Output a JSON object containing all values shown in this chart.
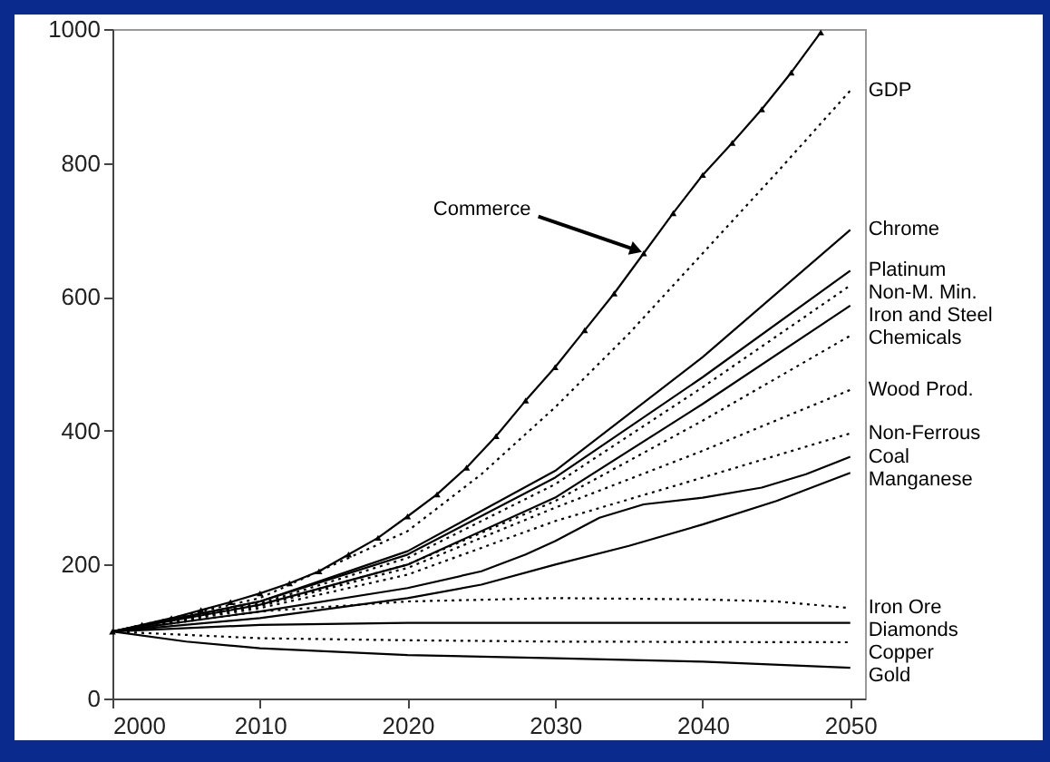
{
  "chart_data": {
    "type": "line",
    "xlim": [
      2000,
      2051
    ],
    "ylim": [
      0,
      1000
    ],
    "xticks": [
      2000,
      2010,
      2020,
      2030,
      2040,
      2050
    ],
    "yticks": [
      0,
      200,
      400,
      600,
      800,
      1000
    ],
    "grid": false,
    "series": [
      {
        "name": "Commerce",
        "color": "#000000",
        "marker": "triangle",
        "line_style": "solid",
        "x": [
          2000,
          2002,
          2004,
          2006,
          2008,
          2010,
          2012,
          2014,
          2016,
          2018,
          2020,
          2022,
          2024,
          2026,
          2028,
          2030,
          2032,
          2034,
          2036,
          2038,
          2040,
          2042,
          2044,
          2046,
          2048
        ],
        "values": [
          100,
          110,
          120,
          132,
          144,
          157,
          172,
          190,
          215,
          240,
          272,
          305,
          345,
          392,
          445,
          495,
          550,
          605,
          665,
          725,
          782,
          830,
          880,
          935,
          995
        ]
      },
      {
        "name": "GDP",
        "color": "#000000",
        "line_style": "dotted",
        "x": [
          2000,
          2010,
          2020,
          2025,
          2030,
          2035,
          2040,
          2045,
          2050
        ],
        "values": [
          100,
          150,
          250,
          335,
          435,
          545,
          665,
          785,
          908
        ]
      },
      {
        "name": "Chrome",
        "color": "#000000",
        "line_style": "solid",
        "x": [
          2000,
          2010,
          2020,
          2030,
          2040,
          2050
        ],
        "values": [
          100,
          145,
          220,
          340,
          510,
          700
        ]
      },
      {
        "name": "Platinum",
        "color": "#000000",
        "line_style": "solid",
        "x": [
          2000,
          2010,
          2020,
          2030,
          2040,
          2050
        ],
        "values": [
          100,
          145,
          215,
          330,
          480,
          639
        ]
      },
      {
        "name": "Non-M. Min.",
        "color": "#000000",
        "line_style": "dotted",
        "x": [
          2000,
          2010,
          2020,
          2030,
          2040,
          2050
        ],
        "values": [
          100,
          142,
          210,
          320,
          465,
          617
        ]
      },
      {
        "name": "Iron and Steel",
        "color": "#000000",
        "line_style": "solid",
        "x": [
          2000,
          2010,
          2020,
          2030,
          2040,
          2050
        ],
        "values": [
          100,
          140,
          200,
          300,
          440,
          587
        ]
      },
      {
        "name": "Chemicals",
        "color": "#000000",
        "line_style": "dotted",
        "x": [
          2000,
          2010,
          2020,
          2030,
          2040,
          2050
        ],
        "values": [
          100,
          140,
          200,
          295,
          415,
          542
        ]
      },
      {
        "name": "Wood Prod.",
        "color": "#000000",
        "line_style": "dotted",
        "x": [
          2000,
          2010,
          2020,
          2030,
          2040,
          2050
        ],
        "values": [
          100,
          138,
          195,
          285,
          370,
          461
        ]
      },
      {
        "name": "Non-Ferrous",
        "color": "#000000",
        "line_style": "dotted",
        "x": [
          2000,
          2010,
          2020,
          2030,
          2040,
          2050
        ],
        "values": [
          100,
          135,
          185,
          265,
          330,
          396
        ]
      },
      {
        "name": "Coal",
        "color": "#000000",
        "line_style": "solid",
        "x": [
          2000,
          2010,
          2020,
          2025,
          2028,
          2030,
          2033,
          2036,
          2040,
          2044,
          2047,
          2050
        ],
        "values": [
          100,
          130,
          165,
          190,
          215,
          235,
          270,
          290,
          300,
          315,
          335,
          361
        ]
      },
      {
        "name": "Manganese",
        "color": "#000000",
        "line_style": "solid",
        "x": [
          2000,
          2010,
          2020,
          2025,
          2030,
          2035,
          2040,
          2045,
          2050
        ],
        "values": [
          100,
          120,
          150,
          170,
          200,
          228,
          260,
          295,
          337
        ]
      },
      {
        "name": "Iron Ore",
        "color": "#000000",
        "line_style": "dotted",
        "x": [
          2000,
          2010,
          2020,
          2030,
          2040,
          2045,
          2050
        ],
        "values": [
          100,
          130,
          145,
          150,
          148,
          145,
          135
        ]
      },
      {
        "name": "Diamonds",
        "color": "#000000",
        "line_style": "solid",
        "x": [
          2000,
          2010,
          2020,
          2050
        ],
        "values": [
          100,
          110,
          113,
          113
        ]
      },
      {
        "name": "Copper",
        "color": "#000000",
        "line_style": "dotted",
        "x": [
          2000,
          2005,
          2010,
          2020,
          2030,
          2050
        ],
        "values": [
          100,
          95,
          90,
          87,
          85,
          84
        ]
      },
      {
        "name": "Gold",
        "color": "#000000",
        "line_style": "solid",
        "x": [
          2000,
          2005,
          2010,
          2020,
          2030,
          2040,
          2050
        ],
        "values": [
          100,
          85,
          75,
          65,
          60,
          55,
          46
        ]
      }
    ]
  }
}
